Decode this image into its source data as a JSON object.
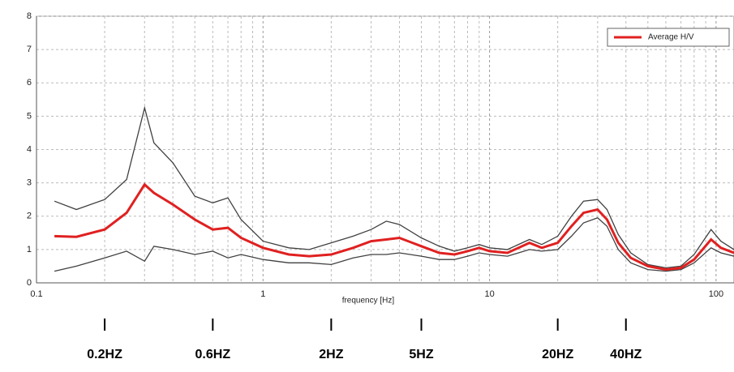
{
  "chart_data": {
    "type": "line",
    "x_label": "frequency [Hz]",
    "x": [
      0.12,
      0.15,
      0.2,
      0.25,
      0.3,
      0.33,
      0.4,
      0.5,
      0.6,
      0.7,
      0.8,
      1,
      1.3,
      1.6,
      2,
      2.5,
      3,
      3.5,
      4,
      5,
      6,
      7,
      8,
      9,
      10,
      12,
      15,
      17,
      20,
      23,
      26,
      30,
      33,
      37,
      42,
      50,
      60,
      70,
      80,
      95,
      105,
      120
    ],
    "series": [
      {
        "color": "#404040",
        "values": [
          2.45,
          2.2,
          2.5,
          3.1,
          5.25,
          4.2,
          3.6,
          2.6,
          2.4,
          2.55,
          1.9,
          1.25,
          1.05,
          1.0,
          1.2,
          1.4,
          1.6,
          1.85,
          1.75,
          1.35,
          1.1,
          0.95,
          1.05,
          1.15,
          1.05,
          1.0,
          1.3,
          1.15,
          1.4,
          2.0,
          2.45,
          2.5,
          2.2,
          1.45,
          0.9,
          0.55,
          0.45,
          0.5,
          0.85,
          1.6,
          1.25,
          1.0
        ]
      },
      {
        "color": "#404040",
        "values": [
          0.35,
          0.5,
          0.75,
          0.95,
          0.65,
          1.1,
          1.0,
          0.85,
          0.95,
          0.75,
          0.85,
          0.7,
          0.6,
          0.6,
          0.55,
          0.75,
          0.85,
          0.85,
          0.9,
          0.8,
          0.7,
          0.7,
          0.8,
          0.9,
          0.85,
          0.8,
          1.0,
          0.95,
          1.0,
          1.4,
          1.8,
          1.95,
          1.7,
          1.0,
          0.6,
          0.4,
          0.35,
          0.4,
          0.6,
          1.05,
          0.9,
          0.8
        ]
      },
      {
        "name": "Average H/V",
        "color": "#e02020",
        "values": [
          1.4,
          1.38,
          1.6,
          2.1,
          2.95,
          2.7,
          2.35,
          1.9,
          1.6,
          1.65,
          1.35,
          1.05,
          0.85,
          0.8,
          0.85,
          1.05,
          1.25,
          1.3,
          1.35,
          1.1,
          0.9,
          0.85,
          0.95,
          1.05,
          0.95,
          0.9,
          1.2,
          1.05,
          1.2,
          1.7,
          2.1,
          2.2,
          1.9,
          1.2,
          0.75,
          0.5,
          0.4,
          0.45,
          0.7,
          1.3,
          1.05,
          0.9
        ]
      }
    ],
    "xscale": "log",
    "xlim": [
      0.1,
      120
    ],
    "xticks": [
      0.1,
      1,
      10,
      100
    ],
    "xminorticks": [
      0.2,
      0.3,
      0.4,
      0.5,
      0.6,
      0.7,
      0.8,
      0.9,
      2,
      3,
      4,
      5,
      6,
      7,
      8,
      9,
      20,
      30,
      40,
      50,
      60,
      70,
      80,
      90
    ],
    "ylim": [
      0,
      8
    ],
    "yticks": [
      0,
      1,
      2,
      3,
      4,
      5,
      6,
      7,
      8
    ],
    "grid": true,
    "legend": "upper right",
    "annotations": [
      {
        "x": 0.2,
        "label": "0.2HZ"
      },
      {
        "x": 0.6,
        "label": "0.6HZ"
      },
      {
        "x": 2,
        "label": "2HZ"
      },
      {
        "x": 5,
        "label": "5HZ"
      },
      {
        "x": 20,
        "label": "20HZ"
      },
      {
        "x": 40,
        "label": "40HZ"
      }
    ]
  }
}
